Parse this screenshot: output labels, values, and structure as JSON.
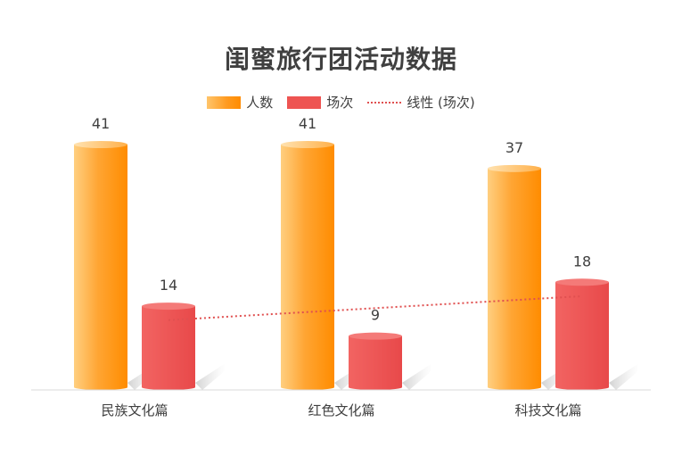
{
  "chart_data": {
    "type": "bar",
    "title": "闺蜜旅行团活动数据",
    "categories": [
      "民族文化篇",
      "红色文化篇",
      "科技文化篇"
    ],
    "series": [
      {
        "name": "人数",
        "values": [
          41,
          41,
          37
        ],
        "color": "#ff9a1f"
      },
      {
        "name": "场次",
        "values": [
          14,
          9,
          18
        ],
        "color": "#ee5452"
      }
    ],
    "trendline": {
      "name": "线性 (场次)",
      "series": "场次",
      "color": "#e05050"
    },
    "ylim": [
      0,
      45
    ],
    "grid": false,
    "legend_position": "top",
    "data_labels": true
  }
}
